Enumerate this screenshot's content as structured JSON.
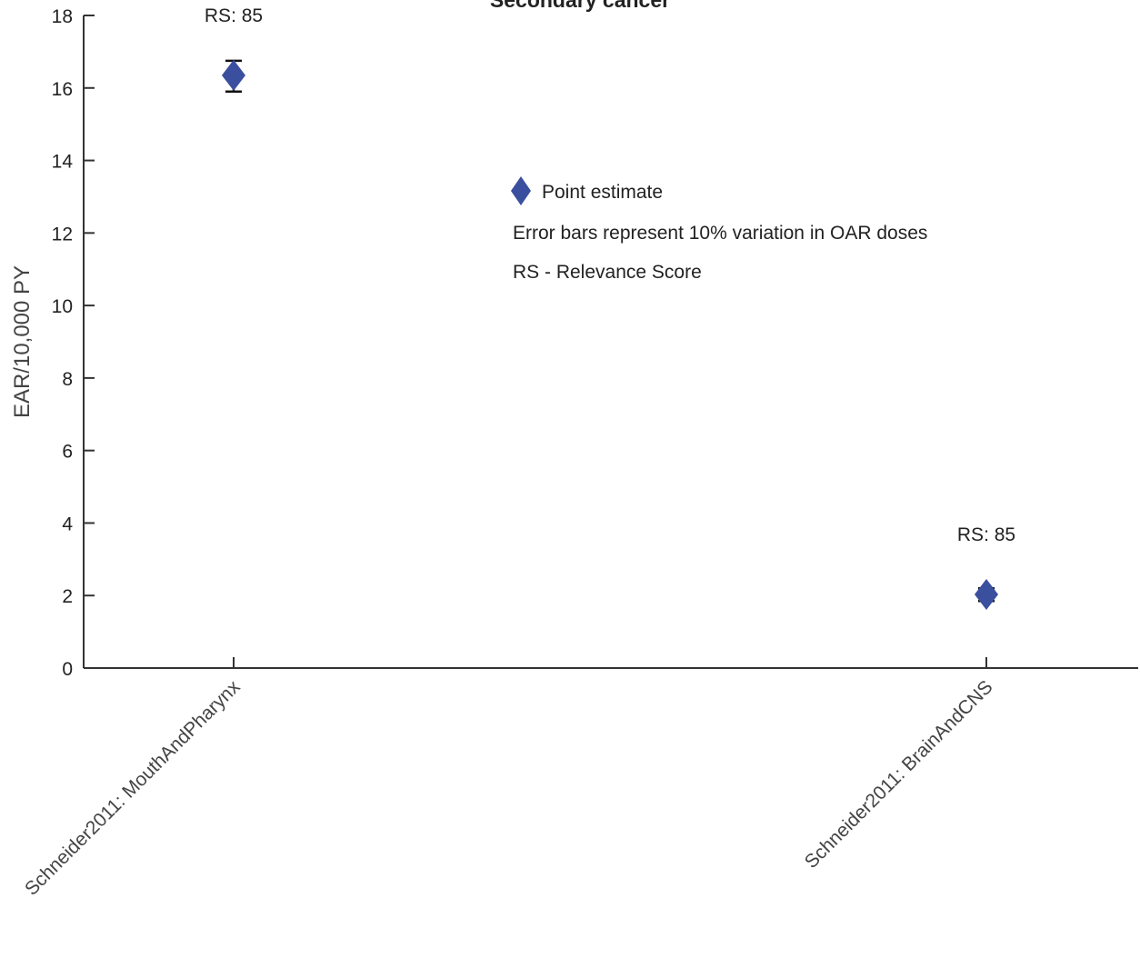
{
  "chart_data": {
    "type": "scatter",
    "title": "Secondary cancer",
    "ylabel": "EAR/10,000 PY",
    "xlabel": "",
    "ylim": [
      0,
      18
    ],
    "yticks": [
      0,
      2,
      4,
      6,
      8,
      10,
      12,
      14,
      16,
      18
    ],
    "categories": [
      "Schneider2011: MouthAndPharynx",
      "Schneider2011: BrainAndCNS"
    ],
    "points": [
      {
        "category": "Schneider2011: MouthAndPharynx",
        "value": 16.35,
        "err_low": 15.9,
        "err_high": 16.75,
        "annotation": "RS: 85"
      },
      {
        "category": "Schneider2011: BrainAndCNS",
        "value": 2.03,
        "err_low": 1.85,
        "err_high": 2.2,
        "annotation": "RS: 85"
      }
    ],
    "marker_color": "#3a4f9e",
    "legend": {
      "entries": [
        "Point estimate"
      ],
      "notes": [
        "Error bars represent 10% variation in OAR doses",
        "RS - Relevance Score"
      ]
    },
    "grid": false
  }
}
